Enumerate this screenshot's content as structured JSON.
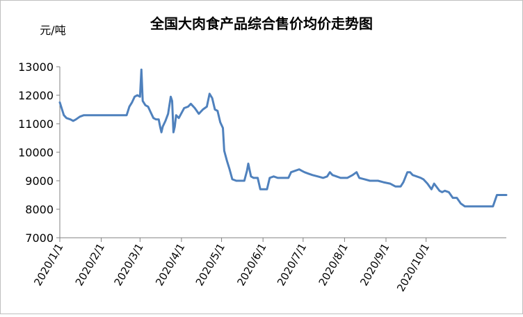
{
  "chart_data": {
    "type": "line",
    "title": "全国大肉食产品综合售价均价走势图",
    "ylabel": "元/吨",
    "xlabel": "",
    "ylim": [
      7000,
      13000
    ],
    "yticks": [
      7000,
      8000,
      9000,
      10000,
      11000,
      12000,
      13000
    ],
    "xlim": [
      "2020-01-01",
      "2020-11-30"
    ],
    "xtick_dates": [
      "2020-01-01",
      "2020-02-01",
      "2020-03-01",
      "2020-04-01",
      "2020-05-01",
      "2020-06-01",
      "2020-07-01",
      "2020-08-01",
      "2020-09-01",
      "2020-10-01"
    ],
    "xtick_labels": [
      "2020/1/1",
      "2020/2/1",
      "2020/3/1",
      "2020/4/1",
      "2020/5/1",
      "2020/6/1",
      "2020/7/1",
      "2020/8/1",
      "2020/9/1",
      "2020/10/1"
    ],
    "grid": false,
    "legend": "none",
    "line_color": "#4f81bd",
    "series": [
      {
        "points": [
          [
            "2020-01-01",
            11750
          ],
          [
            "2020-01-04",
            11300
          ],
          [
            "2020-01-06",
            11200
          ],
          [
            "2020-01-09",
            11150
          ],
          [
            "2020-01-11",
            11100
          ],
          [
            "2020-01-13",
            11150
          ],
          [
            "2020-01-16",
            11250
          ],
          [
            "2020-01-19",
            11300
          ],
          [
            "2020-02-01",
            11300
          ],
          [
            "2020-02-10",
            11300
          ],
          [
            "2020-02-20",
            11300
          ],
          [
            "2020-02-22",
            11600
          ],
          [
            "2020-02-24",
            11750
          ],
          [
            "2020-02-26",
            11950
          ],
          [
            "2020-02-28",
            12000
          ],
          [
            "2020-03-01",
            11950
          ],
          [
            "2020-03-02",
            12900
          ],
          [
            "2020-03-03",
            11800
          ],
          [
            "2020-03-05",
            11650
          ],
          [
            "2020-03-07",
            11600
          ],
          [
            "2020-03-09",
            11400
          ],
          [
            "2020-03-11",
            11200
          ],
          [
            "2020-03-13",
            11150
          ],
          [
            "2020-03-15",
            11150
          ],
          [
            "2020-03-16",
            10900
          ],
          [
            "2020-03-17",
            10700
          ],
          [
            "2020-03-18",
            10900
          ],
          [
            "2020-03-20",
            11100
          ],
          [
            "2020-03-22",
            11350
          ],
          [
            "2020-03-24",
            11950
          ],
          [
            "2020-03-25",
            11800
          ],
          [
            "2020-03-26",
            10700
          ],
          [
            "2020-03-27",
            10900
          ],
          [
            "2020-03-28",
            11300
          ],
          [
            "2020-03-30",
            11200
          ],
          [
            "2020-04-03",
            11550
          ],
          [
            "2020-04-06",
            11600
          ],
          [
            "2020-04-08",
            11700
          ],
          [
            "2020-04-11",
            11550
          ],
          [
            "2020-04-14",
            11350
          ],
          [
            "2020-04-17",
            11500
          ],
          [
            "2020-04-20",
            11600
          ],
          [
            "2020-04-22",
            12050
          ],
          [
            "2020-04-24",
            11900
          ],
          [
            "2020-04-26",
            11500
          ],
          [
            "2020-04-28",
            11450
          ],
          [
            "2020-04-30",
            11050
          ],
          [
            "2020-05-02",
            10850
          ],
          [
            "2020-05-03",
            10050
          ],
          [
            "2020-05-05",
            9700
          ],
          [
            "2020-05-07",
            9400
          ],
          [
            "2020-05-09",
            9050
          ],
          [
            "2020-05-12",
            9000
          ],
          [
            "2020-05-18",
            9000
          ],
          [
            "2020-05-20",
            9350
          ],
          [
            "2020-05-21",
            9600
          ],
          [
            "2020-05-23",
            9150
          ],
          [
            "2020-05-25",
            9100
          ],
          [
            "2020-05-28",
            9100
          ],
          [
            "2020-05-30",
            8700
          ],
          [
            "2020-06-04",
            8700
          ],
          [
            "2020-06-06",
            9100
          ],
          [
            "2020-06-09",
            9150
          ],
          [
            "2020-06-12",
            9100
          ],
          [
            "2020-06-17",
            9100
          ],
          [
            "2020-06-20",
            9100
          ],
          [
            "2020-06-22",
            9300
          ],
          [
            "2020-06-25",
            9350
          ],
          [
            "2020-06-28",
            9400
          ],
          [
            "2020-06-30",
            9350
          ],
          [
            "2020-07-02",
            9300
          ],
          [
            "2020-07-05",
            9250
          ],
          [
            "2020-07-08",
            9200
          ],
          [
            "2020-07-12",
            9150
          ],
          [
            "2020-07-16",
            9100
          ],
          [
            "2020-07-19",
            9150
          ],
          [
            "2020-07-21",
            9300
          ],
          [
            "2020-07-23",
            9200
          ],
          [
            "2020-07-26",
            9150
          ],
          [
            "2020-07-29",
            9100
          ],
          [
            "2020-08-03",
            9100
          ],
          [
            "2020-08-07",
            9200
          ],
          [
            "2020-08-10",
            9300
          ],
          [
            "2020-08-12",
            9100
          ],
          [
            "2020-08-16",
            9050
          ],
          [
            "2020-08-20",
            9000
          ],
          [
            "2020-08-26",
            9000
          ],
          [
            "2020-08-30",
            8950
          ],
          [
            "2020-09-04",
            8900
          ],
          [
            "2020-09-08",
            8800
          ],
          [
            "2020-09-12",
            8800
          ],
          [
            "2020-09-14",
            8950
          ],
          [
            "2020-09-17",
            9300
          ],
          [
            "2020-09-19",
            9300
          ],
          [
            "2020-09-21",
            9200
          ],
          [
            "2020-09-24",
            9150
          ],
          [
            "2020-09-27",
            9100
          ],
          [
            "2020-09-29",
            9050
          ],
          [
            "2020-10-02",
            8900
          ],
          [
            "2020-10-05",
            8700
          ],
          [
            "2020-10-07",
            8900
          ],
          [
            "2020-10-11",
            8650
          ],
          [
            "2020-10-13",
            8600
          ],
          [
            "2020-10-15",
            8650
          ],
          [
            "2020-10-18",
            8600
          ],
          [
            "2020-10-21",
            8400
          ],
          [
            "2020-10-24",
            8400
          ],
          [
            "2020-10-27",
            8200
          ],
          [
            "2020-10-30",
            8100
          ],
          [
            "2020-11-20",
            8100
          ],
          [
            "2020-11-23",
            8500
          ],
          [
            "2020-11-30",
            8500
          ]
        ]
      }
    ]
  }
}
